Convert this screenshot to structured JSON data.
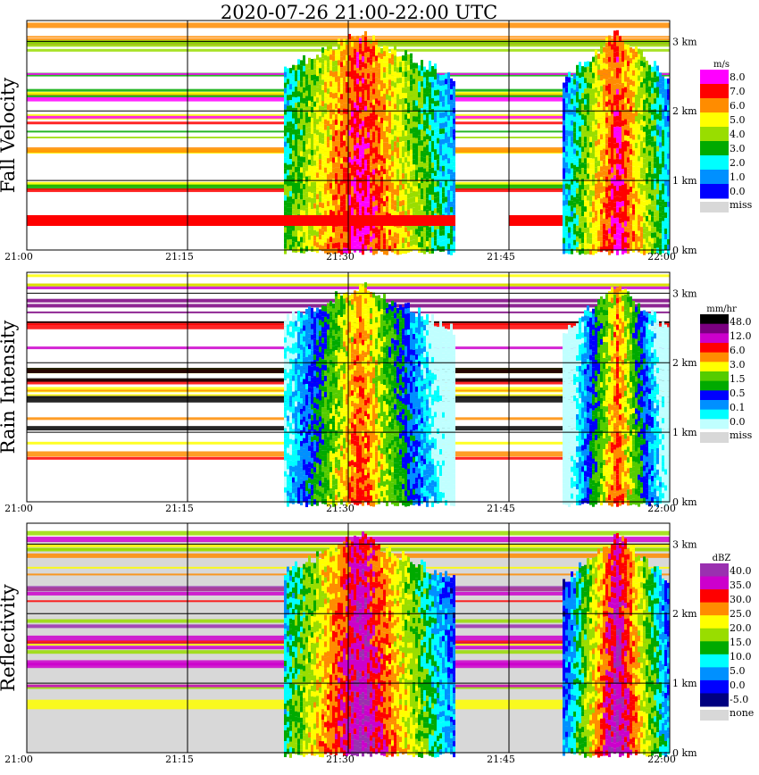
{
  "title": "2020-07-26   21:00-22:00 UTC",
  "x_ticks": [
    "21:00",
    "21:15",
    "21:30",
    "21:45",
    "22:00"
  ],
  "y_ticks": [
    "0 km",
    "1 km",
    "2 km",
    "3 km"
  ],
  "chart_data": [
    {
      "type": "heatmap",
      "ylabel": "Fall Velocity",
      "unit": "m/s",
      "legend_labels": [
        "8.0",
        "7.0",
        "6.0",
        "5.0",
        "4.0",
        "3.0",
        "2.0",
        "1.0",
        "0.0"
      ],
      "legend_colors": [
        "#ff00ff",
        "#ff0000",
        "#ff8c00",
        "#ffff00",
        "#99dd00",
        "#00aa00",
        "#00ffff",
        "#0090ff",
        "#0000ff"
      ],
      "miss_label": "miss",
      "miss_color": "#d8d8d8",
      "xlim": [
        "21:00",
        "22:00"
      ],
      "ylim_km": [
        0,
        3.3
      ],
      "rain_episodes": [
        {
          "start": "21:24",
          "end": "21:40",
          "peak": "21:31"
        },
        {
          "start": "21:50",
          "end": "22:00",
          "peak": "21:55"
        }
      ]
    },
    {
      "type": "heatmap",
      "ylabel": "Rain Intensity",
      "unit": "mm/hr",
      "legend_labels": [
        "48.0",
        "12.0",
        "6.0",
        "3.0",
        "1.5",
        "0.5",
        "0.1",
        "0.0"
      ],
      "legend_colors": [
        "#000000",
        "#7a0080",
        "#cc00cc",
        "#ff0000",
        "#ff8c00",
        "#ffff00",
        "#55cc00",
        "#00aa00",
        "#0000ff",
        "#0090ff",
        "#00ffff",
        "#c0ffff"
      ],
      "miss_label": "miss",
      "miss_color": "#d8d8d8",
      "xlim": [
        "21:00",
        "22:00"
      ],
      "ylim_km": [
        0,
        3.3
      ],
      "rain_episodes": [
        {
          "start": "21:24",
          "end": "21:40",
          "peak": "21:31"
        },
        {
          "start": "21:50",
          "end": "22:00",
          "peak": "21:55"
        }
      ]
    },
    {
      "type": "heatmap",
      "ylabel": "Reflectivity",
      "unit": "dBZ",
      "legend_labels": [
        "40.0",
        "35.0",
        "30.0",
        "25.0",
        "20.0",
        "15.0",
        "10.0",
        "5.0",
        "0.0",
        "-5.0"
      ],
      "legend_colors": [
        "#9a30b0",
        "#cc00cc",
        "#ff0000",
        "#ff8c00",
        "#ffff00",
        "#99dd00",
        "#00aa00",
        "#00ffff",
        "#0090ff",
        "#0000ff",
        "#000080"
      ],
      "miss_label": "none",
      "miss_color": "#d8d8d8",
      "xlim": [
        "21:00",
        "22:00"
      ],
      "ylim_km": [
        0,
        3.3
      ],
      "rain_episodes": [
        {
          "start": "21:24",
          "end": "21:40",
          "peak": "21:31"
        },
        {
          "start": "21:50",
          "end": "22:00",
          "peak": "21:55"
        }
      ]
    }
  ]
}
